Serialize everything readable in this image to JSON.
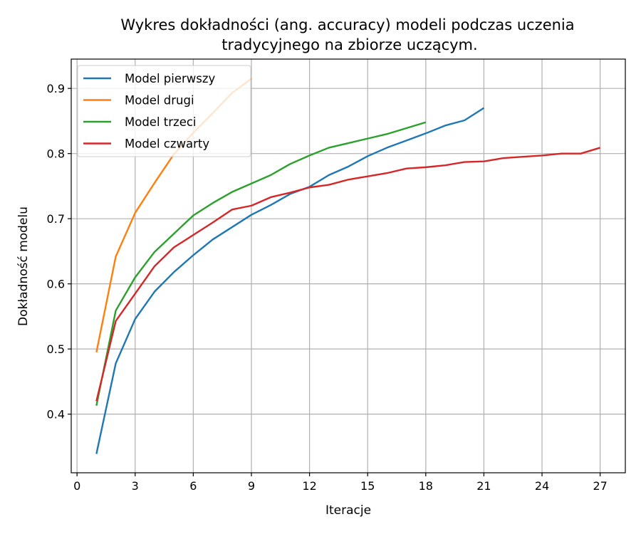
{
  "chart_data": {
    "type": "line",
    "title_lines": [
      "Wykres dokładności (ang. accuracy) modeli podczas uczenia",
      "tradycyjnego na zbiorze uczącym."
    ],
    "xlabel": "Iteracje",
    "ylabel": "Dokładność modelu",
    "xlim": [
      -0.3,
      28.3
    ],
    "ylim": [
      0.31,
      0.945
    ],
    "xticks": [
      0,
      3,
      6,
      9,
      12,
      15,
      18,
      21,
      24,
      27
    ],
    "yticks": [
      0.4,
      0.5,
      0.6,
      0.7,
      0.8,
      0.9
    ],
    "ytick_labels": [
      "0.4",
      "0.5",
      "0.6",
      "0.7",
      "0.8",
      "0.9"
    ],
    "grid": true,
    "legend_position": "top-left",
    "series": [
      {
        "name": "Model pierwszy",
        "color": "#1f77b4",
        "x": [
          1,
          2,
          3,
          4,
          5,
          6,
          7,
          8,
          9,
          10,
          11,
          12,
          13,
          14,
          15,
          16,
          17,
          18,
          19,
          20,
          21
        ],
        "y": [
          0.339,
          0.478,
          0.546,
          0.588,
          0.618,
          0.644,
          0.668,
          0.687,
          0.706,
          0.721,
          0.738,
          0.749,
          0.767,
          0.78,
          0.796,
          0.809,
          0.82,
          0.831,
          0.843,
          0.851,
          0.87
        ]
      },
      {
        "name": "Model drugi",
        "color": "#ff7f0e",
        "x": [
          1,
          2,
          3,
          4,
          5,
          6,
          7,
          8,
          9
        ],
        "y": [
          0.495,
          0.642,
          0.709,
          0.755,
          0.799,
          0.832,
          0.862,
          0.893,
          0.915
        ]
      },
      {
        "name": "Model trzeci",
        "color": "#2ca02c",
        "x": [
          1,
          2,
          3,
          4,
          5,
          6,
          7,
          8,
          9,
          10,
          11,
          12,
          13,
          14,
          15,
          16,
          17,
          18
        ],
        "y": [
          0.413,
          0.559,
          0.61,
          0.649,
          0.677,
          0.705,
          0.724,
          0.741,
          0.754,
          0.767,
          0.784,
          0.797,
          0.809,
          0.816,
          0.823,
          0.83,
          0.839,
          0.848
        ]
      },
      {
        "name": "Model czwarty",
        "color": "#d62728",
        "x": [
          1,
          2,
          3,
          4,
          5,
          6,
          7,
          8,
          9,
          10,
          11,
          12,
          13,
          14,
          15,
          16,
          17,
          18,
          19,
          20,
          21,
          22,
          23,
          24,
          25,
          26,
          27
        ],
        "y": [
          0.42,
          0.543,
          0.585,
          0.627,
          0.656,
          0.675,
          0.694,
          0.714,
          0.72,
          0.733,
          0.74,
          0.748,
          0.752,
          0.76,
          0.765,
          0.77,
          0.777,
          0.779,
          0.782,
          0.787,
          0.788,
          0.793,
          0.795,
          0.797,
          0.8,
          0.8,
          0.809
        ]
      }
    ]
  }
}
